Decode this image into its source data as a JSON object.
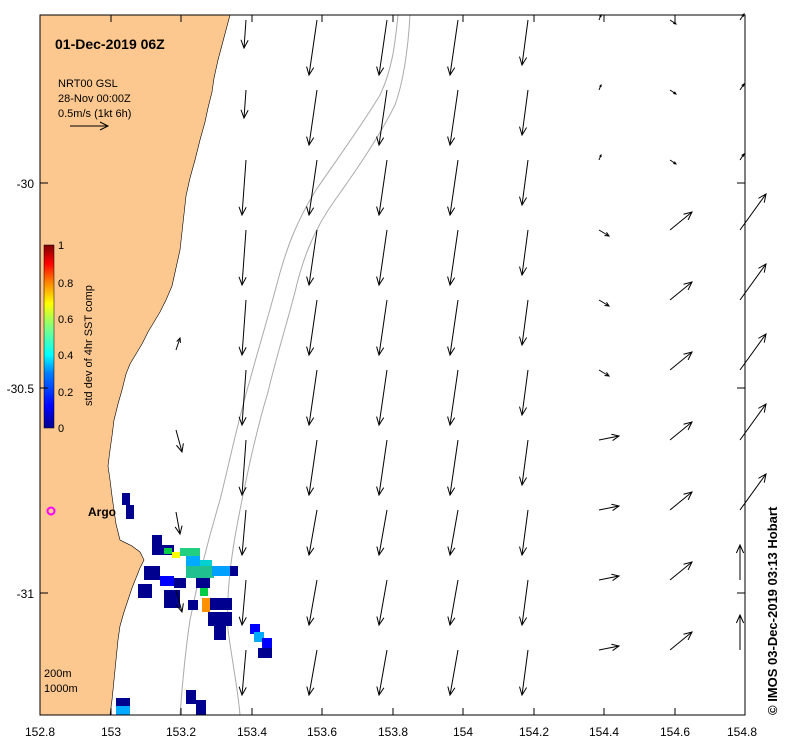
{
  "title": "01-Dec-2019 06Z",
  "source": {
    "line1": "NRT00 GSL",
    "line2": "28-Nov 00:00Z",
    "line3": "0.5m/s (1kt 6h)"
  },
  "colorbar": {
    "label": "std dev of 4hr SST comp",
    "ticks": [
      "1",
      "0.8",
      "0.6",
      "0.4",
      "0.2",
      "0"
    ],
    "colors": [
      "#00008f",
      "#0000ff",
      "#0080ff",
      "#00ffff",
      "#80ff80",
      "#ffff00",
      "#ff8000",
      "#ff0000",
      "#800000"
    ]
  },
  "axes": {
    "x_ticks": [
      "152.8",
      "153",
      "153.2",
      "153.4",
      "153.6",
      "153.8",
      "154",
      "154.2",
      "154.4",
      "154.6",
      "154.8"
    ],
    "y_ticks": [
      "-30",
      "-30.5",
      "-31"
    ],
    "xlim": [
      152.8,
      154.8
    ],
    "ylim": [
      -31.3,
      -29.6
    ]
  },
  "argo_label": "Argo",
  "depth_labels": [
    "200m",
    "1000m"
  ],
  "copyright": "© IMOS 03-Dec-2019 03:13 Hobart",
  "colors": {
    "land": "#fcc88f",
    "ocean": "#ffffff",
    "argo": "#ff00ff",
    "contour": "#aaaaaa"
  }
}
